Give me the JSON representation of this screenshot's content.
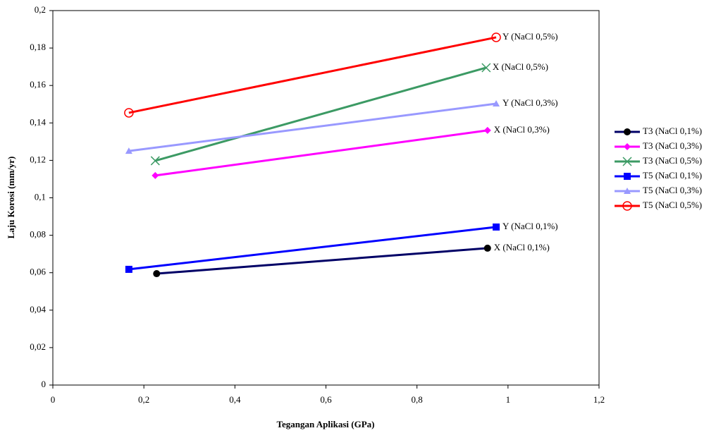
{
  "chart_data": {
    "type": "line",
    "x_label": "Tegangan Aplikasi (GPa)",
    "y_label": "Laju Korosi (mm/yr)",
    "xlim": [
      0,
      1.2
    ],
    "xticks": [
      0,
      {
        "value": 0.2,
        "label": "0,2"
      },
      {
        "value": 0.4,
        "label": "0,4"
      },
      {
        "value": 0.6,
        "label": "0,6"
      },
      {
        "value": 0.8,
        "label": "0,8"
      },
      1,
      {
        "value": 1.2,
        "label": "1,2"
      }
    ],
    "ylim": [
      0,
      0.2
    ],
    "yticks": [
      0,
      {
        "value": 0.02,
        "label": "0,02"
      },
      {
        "value": 0.04,
        "label": "0,04"
      },
      {
        "value": 0.06,
        "label": "0,06"
      },
      {
        "value": 0.08,
        "label": "0,08"
      },
      {
        "value": 0.1,
        "label": "0,1"
      },
      {
        "value": 0.12,
        "label": "0,12"
      },
      {
        "value": 0.14,
        "label": "0,14"
      },
      {
        "value": 0.16,
        "label": "0,16"
      },
      {
        "value": 0.18,
        "label": "0,18"
      },
      {
        "value": 0.2,
        "label": "0,2"
      }
    ],
    "grid": false,
    "legend": "right",
    "series": [
      {
        "name": "T3 (NaCl 0,1%)",
        "color": "#000066",
        "marker": "circle",
        "x": [
          0.228,
          0.955
        ],
        "values": [
          0.0595,
          0.0731
        ],
        "label": "X (NaCl 0,1%)"
      },
      {
        "name": "T3 (NaCl 0,3%)",
        "color": "#ff00ff",
        "marker": "diamond",
        "x": [
          0.225,
          0.955
        ],
        "values": [
          0.1119,
          0.136
        ],
        "label": "X (NaCl 0,3%)"
      },
      {
        "name": "T3 (NaCl 0,5%)",
        "color": "#3c9a64",
        "marker": "x",
        "x": [
          0.225,
          0.952
        ],
        "values": [
          0.1198,
          0.1695
        ],
        "label": "X (NaCl 0,5%)"
      },
      {
        "name": "T5 (NaCl 0,1%)",
        "color": "#0000ff",
        "marker": "square",
        "x": [
          0.167,
          0.974
        ],
        "values": [
          0.0618,
          0.0844
        ],
        "label": "Y (NaCl 0,1%)"
      },
      {
        "name": "T5 (NaCl 0,3%)",
        "color": "#9999ff",
        "marker": "triangle",
        "x": [
          0.167,
          0.974
        ],
        "values": [
          0.125,
          0.1503
        ],
        "label": "Y (NaCl 0,3%)"
      },
      {
        "name": "T5 (NaCl 0,5%)",
        "color": "#ff0000",
        "marker": "open-circle",
        "x": [
          0.167,
          0.974
        ],
        "values": [
          0.1454,
          0.1857
        ],
        "label": "Y (NaCl 0,5%)"
      }
    ]
  }
}
